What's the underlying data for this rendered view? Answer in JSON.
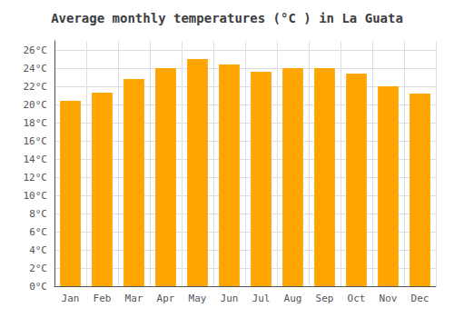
{
  "chart_data": {
    "type": "bar",
    "title": "Average monthly temperatures (°C ) in La Guata",
    "categories": [
      "Jan",
      "Feb",
      "Mar",
      "Apr",
      "May",
      "Jun",
      "Jul",
      "Aug",
      "Sep",
      "Oct",
      "Nov",
      "Dec"
    ],
    "values": [
      20.4,
      21.3,
      22.8,
      24.0,
      25.0,
      24.4,
      23.6,
      24.0,
      24.0,
      23.4,
      22.0,
      21.2
    ],
    "color": "#FFA500",
    "ylim": [
      0,
      27
    ],
    "yticks": [
      {
        "value": 0,
        "label": "0°C"
      },
      {
        "value": 2,
        "label": "2°C"
      },
      {
        "value": 4,
        "label": "4°C"
      },
      {
        "value": 6,
        "label": "6°C"
      },
      {
        "value": 8,
        "label": "8°C"
      },
      {
        "value": 10,
        "label": "10°C"
      },
      {
        "value": 12,
        "label": "12°C"
      },
      {
        "value": 14,
        "label": "14°C"
      },
      {
        "value": 16,
        "label": "16°C"
      },
      {
        "value": 18,
        "label": "18°C"
      },
      {
        "value": 20,
        "label": "20°C"
      },
      {
        "value": 22,
        "label": "22°C"
      },
      {
        "value": 24,
        "label": "24°C"
      },
      {
        "value": 26,
        "label": "26°C"
      }
    ],
    "grid": true
  }
}
